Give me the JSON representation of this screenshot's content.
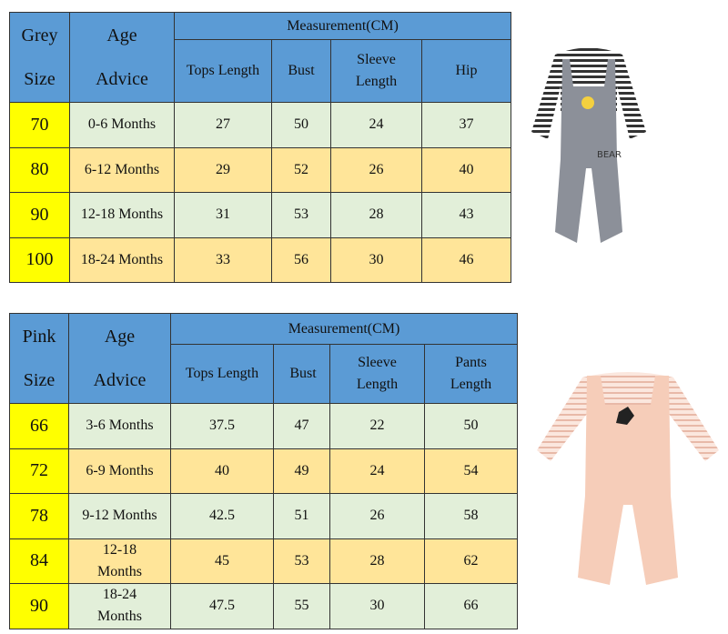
{
  "tables": [
    {
      "header": {
        "size": "Grey Size",
        "age": "Age Advice",
        "group": "Measurement(CM)",
        "columns": [
          "Tops Length",
          "Bust",
          "Sleeve Length",
          "Hip"
        ]
      },
      "rows": [
        [
          70,
          "0-6 Months",
          27,
          50,
          24,
          37
        ],
        [
          80,
          "6-12 Months",
          29,
          52,
          26,
          40
        ],
        [
          90,
          "12-18 Months",
          31,
          53,
          28,
          43
        ],
        [
          100,
          "18-24 Months",
          33,
          56,
          30,
          46
        ]
      ]
    },
    {
      "header": {
        "size": "Pink Size",
        "age": "Age Advice",
        "group": "Measurement(CM)",
        "columns": [
          "Tops Length",
          "Bust",
          "Sleeve Length",
          "Pants Length"
        ]
      },
      "rows": [
        [
          66,
          "3-6 Months",
          37.5,
          47,
          22,
          50
        ],
        [
          72,
          "6-9 Months",
          40,
          49,
          24,
          54
        ],
        [
          78,
          "9-12 Months",
          42.5,
          51,
          26,
          58
        ],
        [
          84,
          "12-18 Months",
          45,
          53,
          28,
          62
        ],
        [
          90,
          "18-24 Months",
          47.5,
          55,
          30,
          66
        ]
      ]
    }
  ]
}
